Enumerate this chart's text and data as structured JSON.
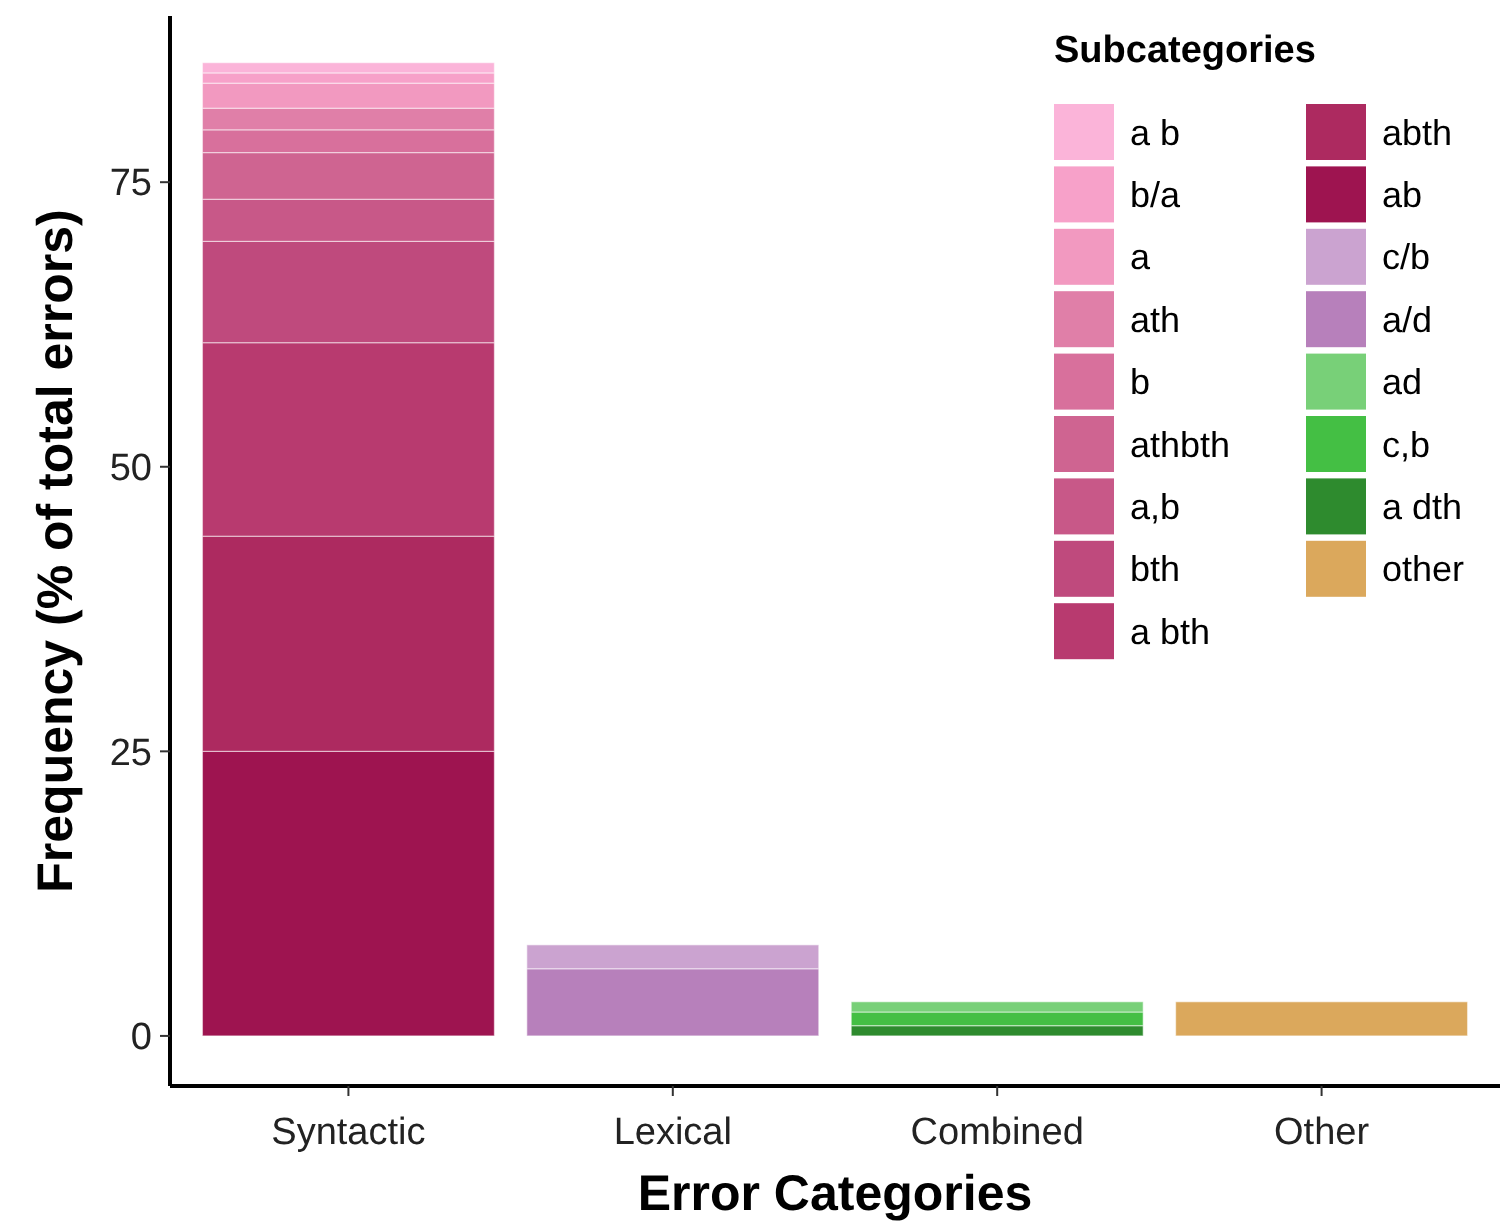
{
  "chart_data": {
    "type": "bar",
    "stacked": true,
    "xlabel": "Error Categories",
    "ylabel": "Frequency (% of total errors)",
    "legend_title": "Subcategories",
    "legend": "top right",
    "grid": false,
    "categories": [
      "Syntactic",
      "Lexical",
      "Combined",
      "Other"
    ],
    "ylim": [
      -4.4,
      89.6
    ],
    "yticks": [
      0,
      25,
      50,
      75
    ],
    "series": [
      {
        "name": "ab",
        "color": "#9e1450",
        "values": [
          25.0,
          null,
          null,
          null
        ]
      },
      {
        "name": "abth",
        "color": "#ad2a60",
        "values": [
          18.9,
          null,
          null,
          null
        ]
      },
      {
        "name": "a bth",
        "color": "#b83a6f",
        "values": [
          17.0,
          null,
          null,
          null
        ]
      },
      {
        "name": "bth",
        "color": "#bf4a7d",
        "values": [
          8.9,
          null,
          null,
          null
        ]
      },
      {
        "name": "a,b",
        "color": "#c85888",
        "values": [
          3.7,
          null,
          null,
          null
        ]
      },
      {
        "name": "athbth",
        "color": "#cf6491",
        "values": [
          4.1,
          null,
          null,
          null
        ]
      },
      {
        "name": "b",
        "color": "#d8709c",
        "values": [
          2.0,
          null,
          null,
          null
        ]
      },
      {
        "name": "ath",
        "color": "#e07fa8",
        "values": [
          1.9,
          null,
          null,
          null
        ]
      },
      {
        "name": "a",
        "color": "#f299c0",
        "values": [
          2.2,
          null,
          null,
          null
        ]
      },
      {
        "name": "b/a",
        "color": "#f7a1c9",
        "values": [
          0.9,
          null,
          null,
          null
        ]
      },
      {
        "name": "a b",
        "color": "#fbb4d9",
        "values": [
          0.9,
          null,
          null,
          null
        ]
      },
      {
        "name": "a/d",
        "color": "#b780bb",
        "values": [
          null,
          5.9,
          null,
          null
        ]
      },
      {
        "name": "c/b",
        "color": "#cba3d0",
        "values": [
          null,
          2.1,
          null,
          null
        ]
      },
      {
        "name": "a dth",
        "color": "#2e8b2e",
        "values": [
          null,
          null,
          0.9,
          null
        ]
      },
      {
        "name": "c,b",
        "color": "#44bf44",
        "values": [
          null,
          null,
          1.2,
          null
        ]
      },
      {
        "name": "ad",
        "color": "#78d078",
        "values": [
          null,
          null,
          0.9,
          null
        ]
      },
      {
        "name": "other",
        "color": "#dba85c",
        "values": [
          null,
          null,
          null,
          3.0
        ]
      }
    ]
  }
}
